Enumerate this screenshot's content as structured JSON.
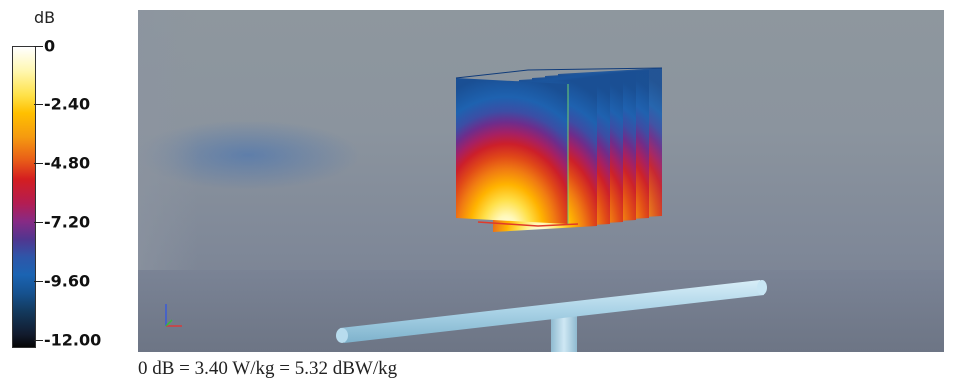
{
  "legend": {
    "unit": "dB",
    "ticks": [
      "0",
      "-2.40",
      "-4.80",
      "-7.20",
      "-9.60",
      "-12.00"
    ]
  },
  "caption": "0 dB = 3.40 W/kg = 5.32 dBW/kg",
  "colors": {
    "scale_high": "#ffffff",
    "scale_yellow": "#ffd21f",
    "scale_red": "#d41e20",
    "scale_purple": "#882a84",
    "scale_blue": "#1b64b2",
    "scale_low": "#050505",
    "background": "#8b949e",
    "pipe": "#a9d2e6"
  }
}
